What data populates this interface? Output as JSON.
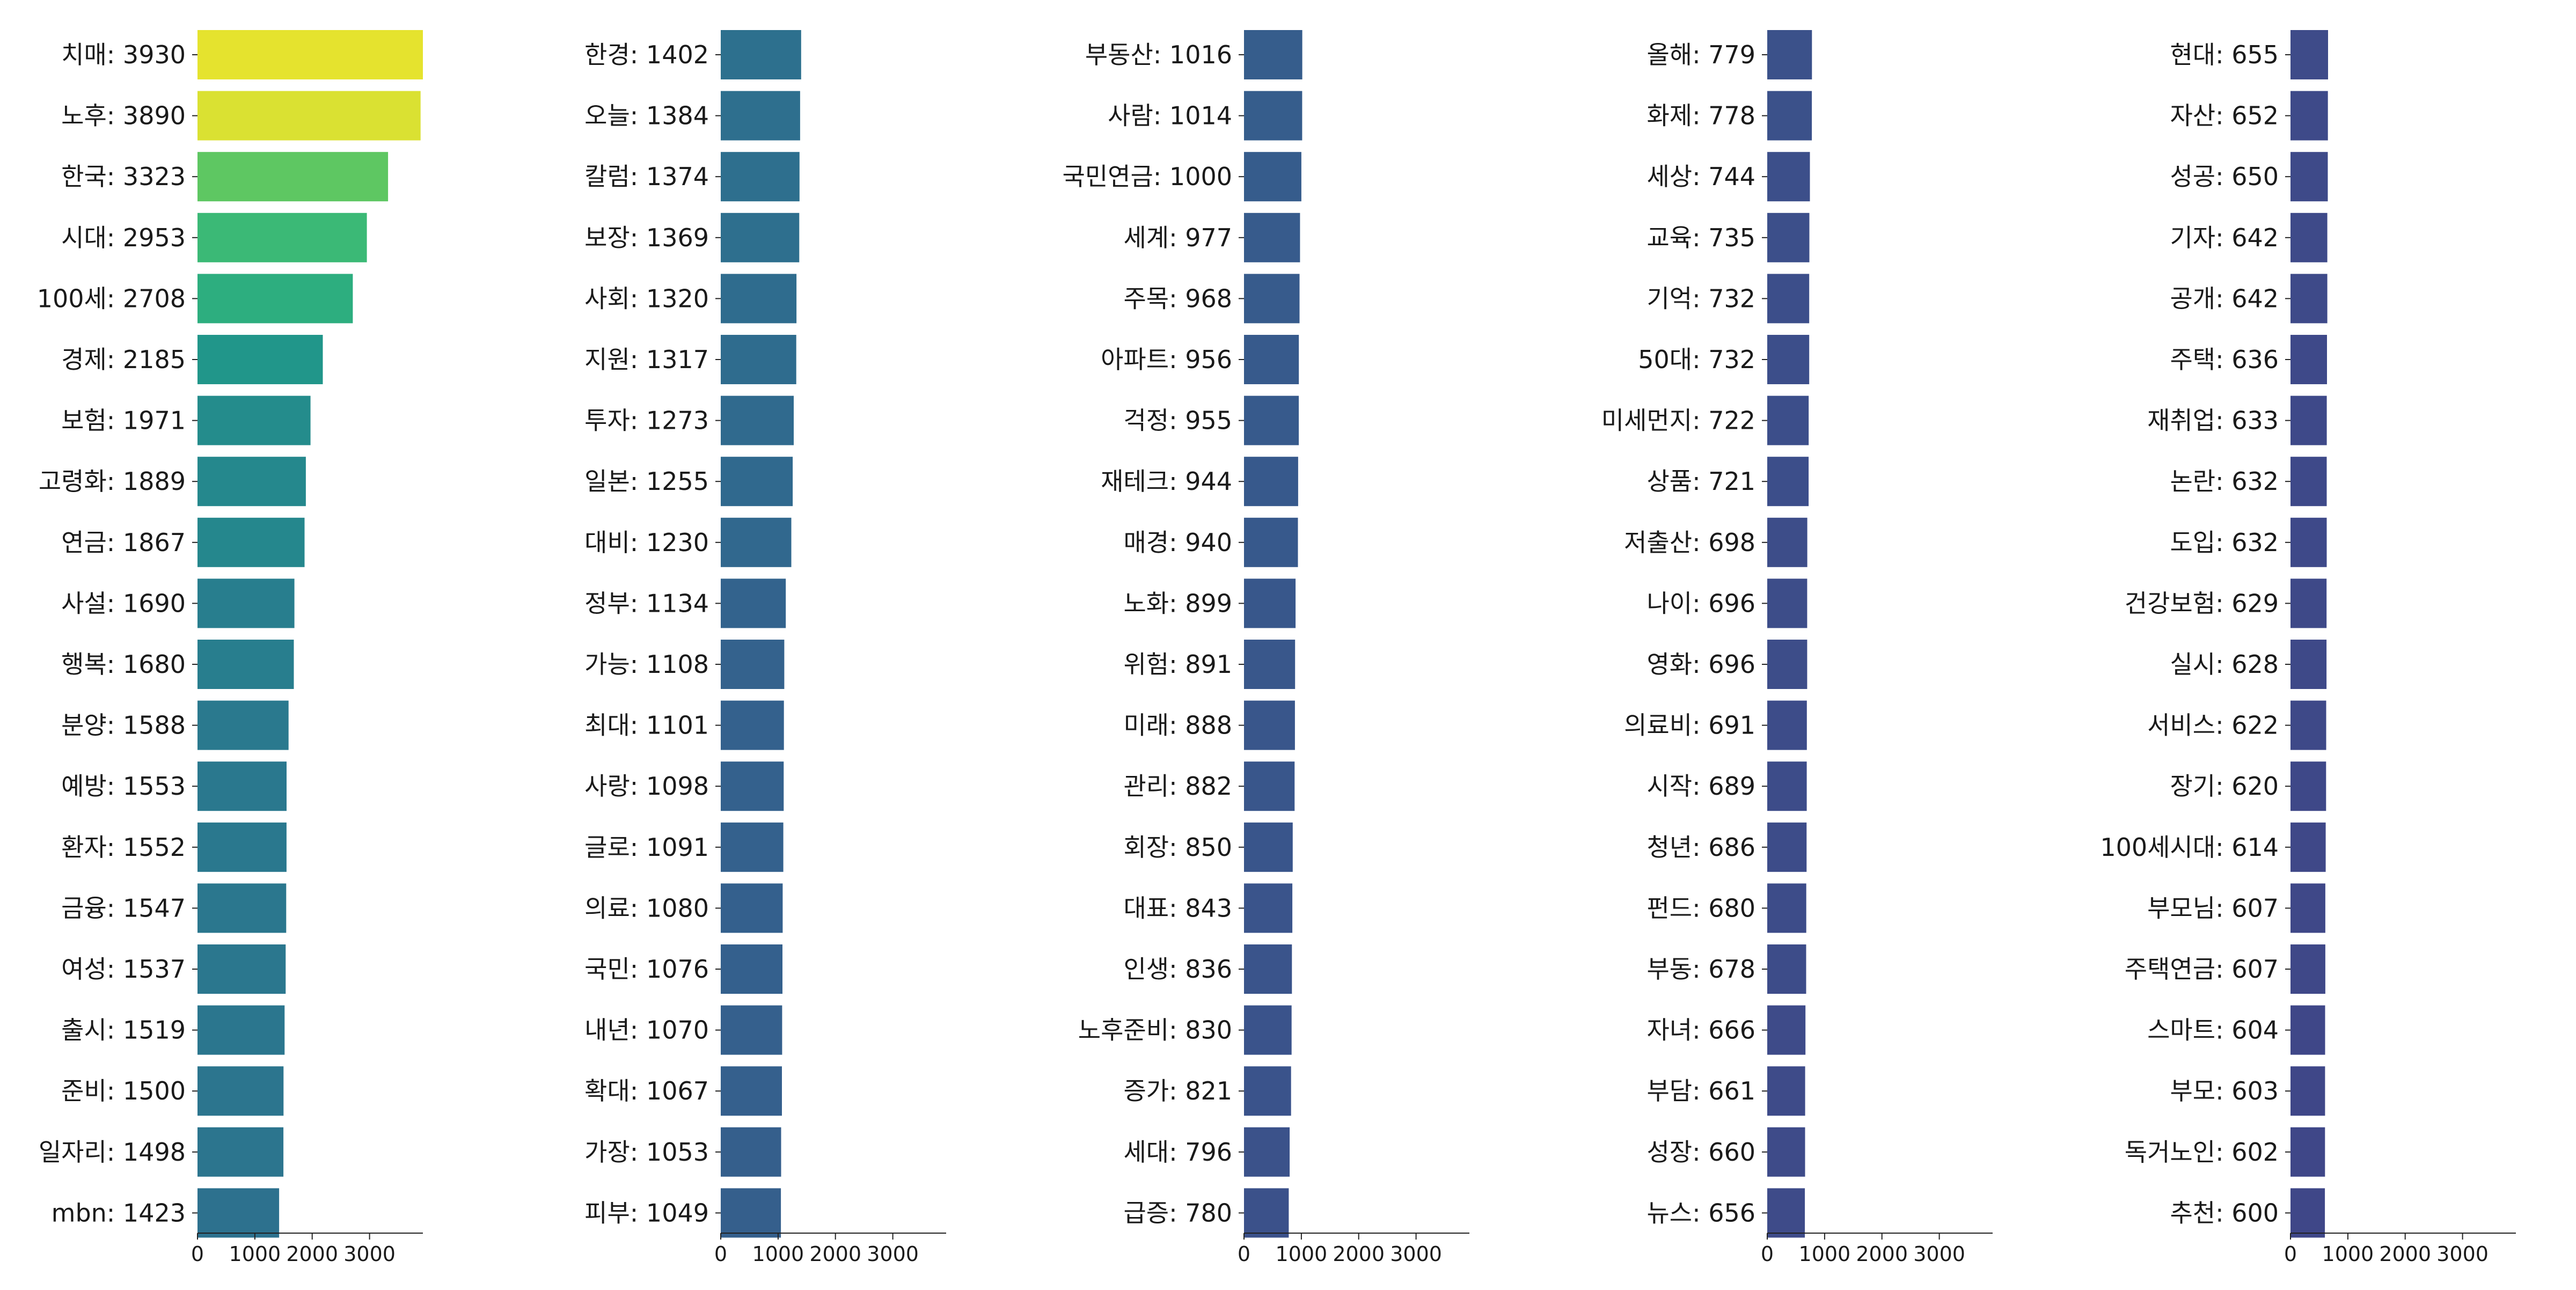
{
  "chart_data": {
    "type": "bar",
    "orientation": "horizontal",
    "panels": 5,
    "xlim": [
      0,
      3930
    ],
    "xticks": [
      0,
      1000,
      2000,
      3000
    ],
    "colormap": "viridis",
    "bars": [
      {
        "label": "치매: 3930",
        "term": "치매",
        "value": 3930
      },
      {
        "label": "노후: 3890",
        "term": "노후",
        "value": 3890
      },
      {
        "label": "한국: 3323",
        "term": "한국",
        "value": 3323
      },
      {
        "label": "시대: 2953",
        "term": "시대",
        "value": 2953
      },
      {
        "label": "100세: 2708",
        "term": "100세",
        "value": 2708
      },
      {
        "label": "경제: 2185",
        "term": "경제",
        "value": 2185
      },
      {
        "label": "보험: 1971",
        "term": "보험",
        "value": 1971
      },
      {
        "label": "고령화: 1889",
        "term": "고령화",
        "value": 1889
      },
      {
        "label": "연금: 1867",
        "term": "연금",
        "value": 1867
      },
      {
        "label": "사설: 1690",
        "term": "사설",
        "value": 1690
      },
      {
        "label": "행복: 1680",
        "term": "행복",
        "value": 1680
      },
      {
        "label": "분양: 1588",
        "term": "분양",
        "value": 1588
      },
      {
        "label": "예방: 1553",
        "term": "예방",
        "value": 1553
      },
      {
        "label": "환자: 1552",
        "term": "환자",
        "value": 1552
      },
      {
        "label": "금융: 1547",
        "term": "금융",
        "value": 1547
      },
      {
        "label": "여성: 1537",
        "term": "여성",
        "value": 1537
      },
      {
        "label": "출시: 1519",
        "term": "출시",
        "value": 1519
      },
      {
        "label": "준비: 1500",
        "term": "준비",
        "value": 1500
      },
      {
        "label": "일자리: 1498",
        "term": "일자리",
        "value": 1498
      },
      {
        "label": "mbn: 1423",
        "term": "mbn",
        "value": 1423
      },
      {
        "label": "한경: 1402",
        "term": "한경",
        "value": 1402
      },
      {
        "label": "오늘: 1384",
        "term": "오늘",
        "value": 1384
      },
      {
        "label": "칼럼: 1374",
        "term": "칼럼",
        "value": 1374
      },
      {
        "label": "보장: 1369",
        "term": "보장",
        "value": 1369
      },
      {
        "label": "사회: 1320",
        "term": "사회",
        "value": 1320
      },
      {
        "label": "지원: 1317",
        "term": "지원",
        "value": 1317
      },
      {
        "label": "투자: 1273",
        "term": "투자",
        "value": 1273
      },
      {
        "label": "일본: 1255",
        "term": "일본",
        "value": 1255
      },
      {
        "label": "대비: 1230",
        "term": "대비",
        "value": 1230
      },
      {
        "label": "정부: 1134",
        "term": "정부",
        "value": 1134
      },
      {
        "label": "가능: 1108",
        "term": "가능",
        "value": 1108
      },
      {
        "label": "최대: 1101",
        "term": "최대",
        "value": 1101
      },
      {
        "label": "사랑: 1098",
        "term": "사랑",
        "value": 1098
      },
      {
        "label": "글로: 1091",
        "term": "글로",
        "value": 1091
      },
      {
        "label": "의료: 1080",
        "term": "의료",
        "value": 1080
      },
      {
        "label": "국민: 1076",
        "term": "국민",
        "value": 1076
      },
      {
        "label": "내년: 1070",
        "term": "내년",
        "value": 1070
      },
      {
        "label": "확대: 1067",
        "term": "확대",
        "value": 1067
      },
      {
        "label": "가장: 1053",
        "term": "가장",
        "value": 1053
      },
      {
        "label": "피부: 1049",
        "term": "피부",
        "value": 1049
      },
      {
        "label": "부동산: 1016",
        "term": "부동산",
        "value": 1016
      },
      {
        "label": "사람: 1014",
        "term": "사람",
        "value": 1014
      },
      {
        "label": "국민연금: 1000",
        "term": "국민연금",
        "value": 1000
      },
      {
        "label": "세계: 977",
        "term": "세계",
        "value": 977
      },
      {
        "label": "주목: 968",
        "term": "주목",
        "value": 968
      },
      {
        "label": "아파트: 956",
        "term": "아파트",
        "value": 956
      },
      {
        "label": "걱정: 955",
        "term": "걱정",
        "value": 955
      },
      {
        "label": "재테크: 944",
        "term": "재테크",
        "value": 944
      },
      {
        "label": "매경: 940",
        "term": "매경",
        "value": 940
      },
      {
        "label": "노화: 899",
        "term": "노화",
        "value": 899
      },
      {
        "label": "위험: 891",
        "term": "위험",
        "value": 891
      },
      {
        "label": "미래: 888",
        "term": "미래",
        "value": 888
      },
      {
        "label": "관리: 882",
        "term": "관리",
        "value": 882
      },
      {
        "label": "회장: 850",
        "term": "회장",
        "value": 850
      },
      {
        "label": "대표: 843",
        "term": "대표",
        "value": 843
      },
      {
        "label": "인생: 836",
        "term": "인생",
        "value": 836
      },
      {
        "label": "노후준비: 830",
        "term": "노후준비",
        "value": 830
      },
      {
        "label": "증가: 821",
        "term": "증가",
        "value": 821
      },
      {
        "label": "세대: 796",
        "term": "세대",
        "value": 796
      },
      {
        "label": "급증: 780",
        "term": "급증",
        "value": 780
      },
      {
        "label": "올해: 779",
        "term": "올해",
        "value": 779
      },
      {
        "label": "화제: 778",
        "term": "화제",
        "value": 778
      },
      {
        "label": "세상: 744",
        "term": "세상",
        "value": 744
      },
      {
        "label": "교육: 735",
        "term": "교육",
        "value": 735
      },
      {
        "label": "기억: 732",
        "term": "기억",
        "value": 732
      },
      {
        "label": "50대: 732",
        "term": "50대",
        "value": 732
      },
      {
        "label": "미세먼지: 722",
        "term": "미세먼지",
        "value": 722
      },
      {
        "label": "상품: 721",
        "term": "상품",
        "value": 721
      },
      {
        "label": "저출산: 698",
        "term": "저출산",
        "value": 698
      },
      {
        "label": "나이: 696",
        "term": "나이",
        "value": 696
      },
      {
        "label": "영화: 696",
        "term": "영화",
        "value": 696
      },
      {
        "label": "의료비: 691",
        "term": "의료비",
        "value": 691
      },
      {
        "label": "시작: 689",
        "term": "시작",
        "value": 689
      },
      {
        "label": "청년: 686",
        "term": "청년",
        "value": 686
      },
      {
        "label": "펀드: 680",
        "term": "펀드",
        "value": 680
      },
      {
        "label": "부동: 678",
        "term": "부동",
        "value": 678
      },
      {
        "label": "자녀: 666",
        "term": "자녀",
        "value": 666
      },
      {
        "label": "부담: 661",
        "term": "부담",
        "value": 661
      },
      {
        "label": "성장: 660",
        "term": "성장",
        "value": 660
      },
      {
        "label": "뉴스: 656",
        "term": "뉴스",
        "value": 656
      },
      {
        "label": "현대: 655",
        "term": "현대",
        "value": 655
      },
      {
        "label": "자산: 652",
        "term": "자산",
        "value": 652
      },
      {
        "label": "성공: 650",
        "term": "성공",
        "value": 650
      },
      {
        "label": "기자: 642",
        "term": "기자",
        "value": 642
      },
      {
        "label": "공개: 642",
        "term": "공개",
        "value": 642
      },
      {
        "label": "주택: 636",
        "term": "주택",
        "value": 636
      },
      {
        "label": "재취업: 633",
        "term": "재취업",
        "value": 633
      },
      {
        "label": "논란: 632",
        "term": "논란",
        "value": 632
      },
      {
        "label": "도입: 632",
        "term": "도입",
        "value": 632
      },
      {
        "label": "건강보험: 629",
        "term": "건강보험",
        "value": 629
      },
      {
        "label": "실시: 628",
        "term": "실시",
        "value": 628
      },
      {
        "label": "서비스: 622",
        "term": "서비스",
        "value": 622
      },
      {
        "label": "장기: 620",
        "term": "장기",
        "value": 620
      },
      {
        "label": "100세시대: 614",
        "term": "100세시대",
        "value": 614
      },
      {
        "label": "부모님: 607",
        "term": "부모님",
        "value": 607
      },
      {
        "label": "주택연금: 607",
        "term": "주택연금",
        "value": 607
      },
      {
        "label": "스마트: 604",
        "term": "스마트",
        "value": 604
      },
      {
        "label": "부모: 603",
        "term": "부모",
        "value": 603
      },
      {
        "label": "독거노인: 602",
        "term": "독거노인",
        "value": 602
      },
      {
        "label": "추천: 600",
        "term": "추천",
        "value": 600
      }
    ],
    "tick_labels": [
      "0",
      "1000",
      "2000",
      "3000"
    ],
    "grid": false,
    "legend": "none"
  }
}
